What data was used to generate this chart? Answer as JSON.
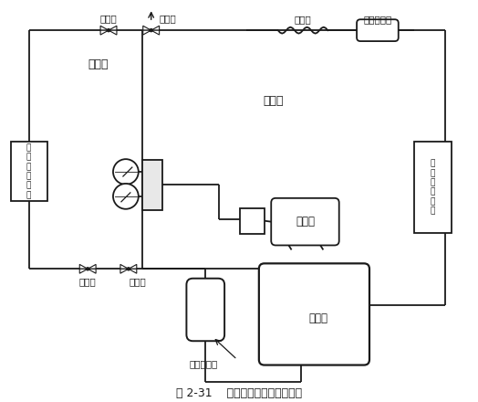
{
  "title": "图 2-31    分体式空调器双侧抽真空",
  "bg_color": "#ffffff",
  "line_color": "#1a1a1a",
  "fig_width": 5.24,
  "fig_height": 4.4,
  "dpi": 100,
  "labels": {
    "indoor_unit": "室内机",
    "outdoor_unit": "室外机",
    "capillary": "毛细管",
    "dryer_filter": "干燥过滤器",
    "high_valve": "高压阀",
    "low_valve": "低压阀",
    "shutoff_valve_top": "截止阀",
    "shutoff_valve_bottom": "截止阀",
    "vacuum_pump": "真空泵",
    "compressor": "压缩机",
    "separator": "气液分离器",
    "indoor_heat_exchanger_label": "室\n内\n热\n交\n换\n器",
    "outdoor_heat_exchanger_label": "室\n外\n热\n交\n换\n器"
  }
}
